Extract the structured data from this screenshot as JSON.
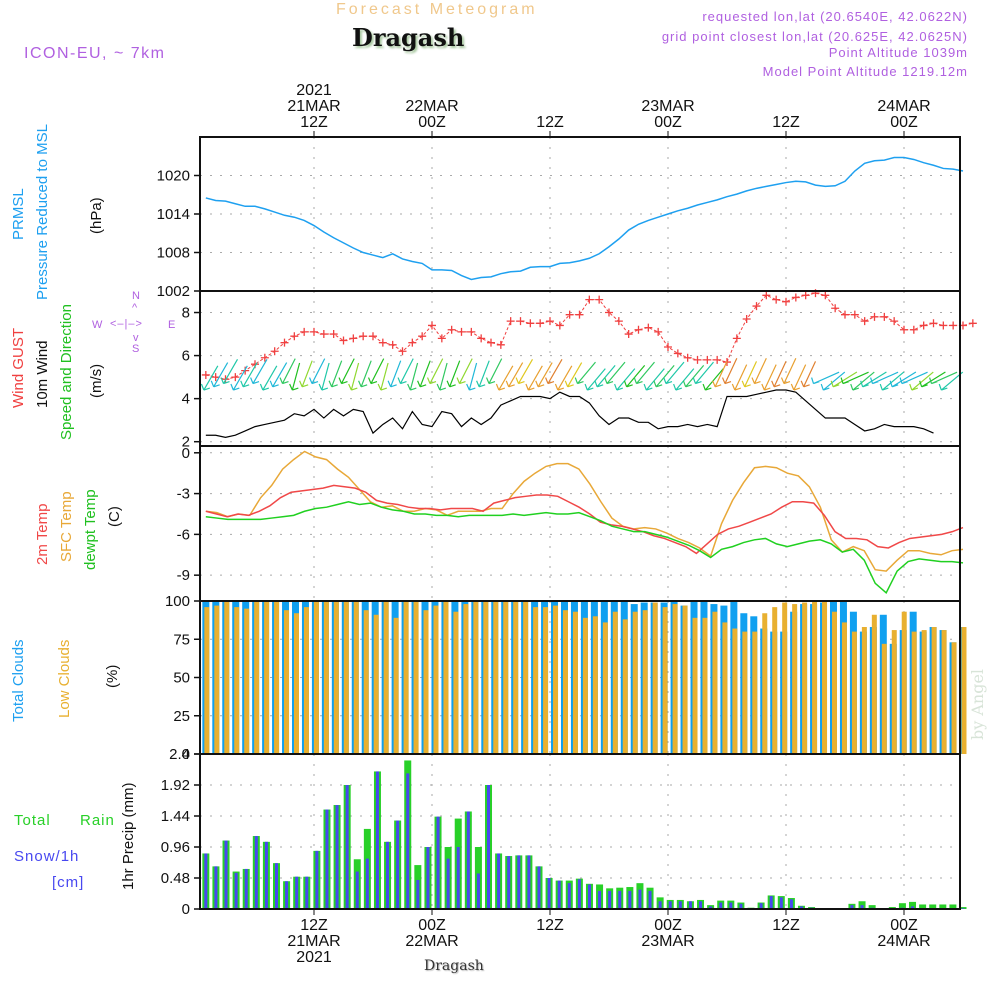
{
  "header": {
    "chart_type_title": "Forecast Meteogram",
    "location": "Dragash",
    "model": "ICON-EU, ~ 7km",
    "requested": "requested lon,lat (20.6540E, 42.0622N)",
    "grid_point": "grid point closest lon,lat (20.625E, 42.0625N)",
    "point_altitude": "Point Altitude 1039m",
    "model_altitude": "Model Point Altitude 1219.12m"
  },
  "footer": {
    "location": "Dragash",
    "watermark": "by Angel"
  },
  "time_axis": {
    "top_ticks": [
      {
        "hour": 12,
        "lines": [
          "2021",
          "21MAR",
          "12Z"
        ]
      },
      {
        "hour": 24,
        "lines": [
          "22MAR",
          "00Z"
        ]
      },
      {
        "hour": 36,
        "lines": [
          "12Z"
        ]
      },
      {
        "hour": 48,
        "lines": [
          "23MAR",
          "00Z"
        ]
      },
      {
        "hour": 60,
        "lines": [
          "12Z"
        ]
      },
      {
        "hour": 72,
        "lines": [
          "24MAR",
          "00Z"
        ]
      }
    ],
    "bottom_ticks": [
      {
        "hour": 12,
        "lines": [
          "12Z",
          "21MAR",
          "2021"
        ]
      },
      {
        "hour": 24,
        "lines": [
          "00Z",
          "22MAR"
        ]
      },
      {
        "hour": 36,
        "lines": [
          "12Z"
        ]
      },
      {
        "hour": 48,
        "lines": [
          "00Z",
          "23MAR"
        ]
      },
      {
        "hour": 60,
        "lines": [
          "12Z"
        ]
      },
      {
        "hour": 72,
        "lines": [
          "00Z",
          "24MAR"
        ]
      }
    ],
    "start": "21MAR2021 01Z",
    "end": "24MAR2021 06Z",
    "step_hours": 1
  },
  "panel_labels": {
    "pressure": [
      "PRMSL",
      "Pressure Reduced to MSL",
      "(hPa)"
    ],
    "wind": [
      "Wind GUST",
      "10m Wind",
      "Speed and Direction",
      "(m/s)"
    ],
    "compass": {
      "n": "N",
      "s": "S",
      "e": "E",
      "w": "W"
    },
    "temp": [
      "2m Temp",
      "SFC Temp",
      "dewpt Temp",
      "(C)"
    ],
    "clouds": [
      "Total Clouds",
      "Low Clouds",
      "(%)"
    ],
    "precip": [
      "Total",
      "Rain",
      "Snow/1h",
      "[cm]",
      "1hr Precip (mm)"
    ]
  },
  "colors": {
    "pressure": "#1ea0f0",
    "gust": "#f04040",
    "wind": "#000000",
    "t2m": "#f04848",
    "sfc": "#e8a838",
    "dew": "#20d020",
    "total_cloud": "#10a0f0",
    "low_cloud": "#e8b030",
    "rain": "#28d028",
    "snow": "#4848f0",
    "purple": "#b060e0"
  },
  "chart_data": [
    {
      "type": "line",
      "title": "PRMSL Pressure Reduced to MSL",
      "ylabel": "(hPa)",
      "ylim": [
        1002,
        1026
      ],
      "yticks": [
        1002,
        1008,
        1014,
        1020
      ],
      "grid": true,
      "series": [
        {
          "name": "PRMSL",
          "values": [
            1016.5,
            1016.1,
            1016.0,
            1015.6,
            1015.2,
            1015.2,
            1014.8,
            1014.3,
            1013.8,
            1013.5,
            1013.0,
            1012.2,
            1011.2,
            1010.3,
            1009.5,
            1008.7,
            1008.0,
            1007.6,
            1007.2,
            1007.8,
            1007.0,
            1006.6,
            1006.3,
            1005.3,
            1005.3,
            1005.2,
            1004.4,
            1003.8,
            1004.1,
            1004.2,
            1004.7,
            1005.0,
            1005.1,
            1005.7,
            1005.8,
            1005.8,
            1006.3,
            1006.4,
            1006.7,
            1007.1,
            1007.8,
            1008.9,
            1010.1,
            1011.5,
            1012.4,
            1013.0,
            1013.5,
            1014.0,
            1014.5,
            1014.9,
            1015.4,
            1015.8,
            1016.2,
            1016.7,
            1017.1,
            1017.6,
            1018.0,
            1018.3,
            1018.6,
            1018.9,
            1019.1,
            1019.0,
            1018.5,
            1018.3,
            1018.4,
            1019.1,
            1020.7,
            1021.9,
            1022.3,
            1022.4,
            1022.8,
            1022.8,
            1022.5,
            1022.0,
            1021.6,
            1021.1,
            1021.0,
            1020.7
          ]
        }
      ]
    },
    {
      "type": "line",
      "title": "Wind GUST / 10m Wind Speed and Direction",
      "ylabel": "(m/s)",
      "ylim": [
        1.8,
        9.0
      ],
      "yticks": [
        2,
        4,
        6,
        8
      ],
      "grid": true,
      "series": [
        {
          "name": "Wind GUST",
          "values": [
            5.1,
            5.0,
            4.9,
            5.0,
            5.3,
            5.6,
            5.9,
            6.2,
            6.6,
            6.9,
            7.1,
            7.1,
            7.0,
            7.0,
            6.7,
            6.8,
            6.9,
            6.9,
            6.6,
            6.5,
            6.2,
            6.6,
            6.9,
            7.4,
            6.8,
            7.2,
            7.1,
            7.1,
            6.8,
            6.6,
            6.5,
            7.6,
            7.6,
            7.5,
            7.5,
            7.6,
            7.4,
            7.9,
            7.9,
            8.6,
            8.6,
            8.0,
            7.6,
            7.0,
            7.2,
            7.3,
            7.1,
            6.4,
            6.1,
            5.9,
            5.8,
            5.8,
            5.8,
            5.7,
            6.8,
            7.7,
            8.3,
            8.8,
            8.6,
            8.5,
            8.7,
            8.8,
            8.9,
            8.8,
            8.2,
            7.9,
            7.9,
            7.6,
            7.8,
            7.8,
            7.6,
            7.2,
            7.2,
            7.4,
            7.5,
            7.4,
            7.4,
            7.4,
            7.5
          ]
        },
        {
          "name": "10m Wind",
          "values": [
            2.3,
            2.3,
            2.2,
            2.3,
            2.5,
            2.7,
            2.8,
            2.9,
            3.0,
            3.3,
            3.2,
            3.5,
            3.1,
            3.5,
            3.2,
            3.5,
            3.4,
            2.4,
            2.8,
            3.1,
            2.6,
            3.4,
            2.8,
            2.7,
            3.4,
            3.3,
            2.7,
            3.1,
            2.8,
            3.1,
            3.7,
            3.9,
            4.1,
            4.1,
            4.1,
            4.0,
            4.3,
            4.1,
            4.1,
            3.8,
            3.2,
            2.8,
            3.1,
            3.1,
            2.9,
            2.9,
            2.6,
            2.7,
            2.7,
            2.8,
            2.7,
            2.8,
            2.7,
            4.1,
            4.1,
            4.1,
            4.2,
            4.3,
            4.4,
            4.4,
            4.3,
            3.9,
            3.5,
            3.1,
            3.1,
            3.1,
            2.8,
            2.5,
            2.6,
            2.8,
            2.7,
            2.7,
            2.7,
            2.6,
            2.4
          ]
        }
      ]
    },
    {
      "type": "line",
      "title": "2m Temp / SFC Temp / dewpt Temp",
      "ylabel": "(C)",
      "ylim": [
        -10.9,
        0.5
      ],
      "yticks": [
        0,
        -3,
        -6,
        -9
      ],
      "grid": true,
      "series": [
        {
          "name": "2m Temp",
          "values": [
            -4.3,
            -4.5,
            -4.7,
            -4.5,
            -4.6,
            -4.3,
            -3.9,
            -3.3,
            -2.9,
            -2.8,
            -2.7,
            -2.6,
            -2.4,
            -2.5,
            -2.6,
            -2.9,
            -3.5,
            -3.7,
            -3.8,
            -4.0,
            -4.1,
            -4.1,
            -4.2,
            -4.1,
            -4.1,
            -4.1,
            -4.3,
            -3.7,
            -3.5,
            -3.3,
            -3.2,
            -3.1,
            -3.1,
            -3.2,
            -3.6,
            -4.0,
            -4.5,
            -5.1,
            -5.3,
            -5.4,
            -5.6,
            -5.8,
            -6.1,
            -6.3,
            -6.6,
            -6.9,
            -7.4,
            -6.7,
            -6.0,
            -5.6,
            -5.4,
            -5.1,
            -4.8,
            -4.5,
            -4.0,
            -3.6,
            -3.6,
            -3.7,
            -4.6,
            -5.8,
            -6.3,
            -6.3,
            -6.4,
            -6.9,
            -7.0,
            -6.6,
            -6.3,
            -6.2,
            -6.1,
            -6.0,
            -5.8,
            -5.5
          ]
        },
        {
          "name": "SFC Temp",
          "values": [
            -4.3,
            -4.4,
            -4.7,
            -4.5,
            -4.6,
            -3.3,
            -2.4,
            -1.2,
            -0.5,
            0.1,
            -0.3,
            -0.5,
            -1.2,
            -1.8,
            -2.7,
            -3.6,
            -4.0,
            -3.9,
            -4.3,
            -4.3,
            -4.1,
            -4.2,
            -4.6,
            -4.3,
            -4.3,
            -4.3,
            -4.1,
            -4.1,
            -3.0,
            -2.1,
            -1.5,
            -1.0,
            -0.8,
            -0.8,
            -1.2,
            -2.3,
            -3.6,
            -4.8,
            -5.4,
            -5.6,
            -5.5,
            -5.6,
            -5.9,
            -6.3,
            -6.6,
            -7.0,
            -7.6,
            -5.2,
            -3.5,
            -2.2,
            -1.1,
            -1.0,
            -1.1,
            -1.5,
            -1.7,
            -2.5,
            -4.0,
            -6.4,
            -7.3,
            -6.9,
            -7.2,
            -8.6,
            -8.7,
            -7.9,
            -7.2,
            -7.2,
            -7.4,
            -7.5,
            -7.2,
            -7.1
          ]
        },
        {
          "name": "dewpt Temp",
          "values": [
            -4.7,
            -4.8,
            -4.9,
            -4.9,
            -4.9,
            -4.9,
            -4.8,
            -4.7,
            -4.6,
            -4.3,
            -4.1,
            -4.0,
            -3.8,
            -3.6,
            -3.8,
            -3.7,
            -4.0,
            -4.2,
            -4.3,
            -4.5,
            -4.5,
            -4.6,
            -4.6,
            -4.7,
            -4.6,
            -4.6,
            -4.6,
            -4.6,
            -4.5,
            -4.6,
            -4.5,
            -4.4,
            -4.5,
            -4.5,
            -4.4,
            -4.7,
            -5.0,
            -5.4,
            -5.6,
            -5.8,
            -5.8,
            -6.0,
            -6.2,
            -6.5,
            -6.8,
            -7.2,
            -7.7,
            -7.1,
            -6.9,
            -6.6,
            -6.4,
            -6.3,
            -6.7,
            -6.9,
            -6.7,
            -6.5,
            -6.4,
            -6.7,
            -7.3,
            -7.1,
            -7.9,
            -9.6,
            -10.3,
            -8.7,
            -8.0,
            -7.8,
            -7.9,
            -8.0,
            -8.0,
            -8.1
          ]
        }
      ]
    },
    {
      "type": "bar",
      "title": "Total Clouds / Low Clouds",
      "ylabel": "(%)",
      "ylim": [
        0,
        100
      ],
      "yticks": [
        0,
        25,
        50,
        75,
        100
      ],
      "grid": true,
      "series": [
        {
          "name": "Total Clouds",
          "values": [
            100,
            100,
            100,
            100,
            100,
            100,
            100,
            100,
            100,
            100,
            100,
            100,
            100,
            100,
            100,
            100,
            100,
            100,
            100,
            100,
            100,
            100,
            100,
            100,
            100,
            100,
            100,
            100,
            100,
            100,
            100,
            100,
            100,
            100,
            100,
            100,
            100,
            100,
            100,
            100,
            100,
            100,
            100,
            100,
            100,
            100,
            100,
            100,
            100,
            98,
            99,
            99,
            99,
            99,
            100,
            97,
            100,
            100,
            98,
            100,
            97,
            100,
            92,
            90,
            82,
            80,
            80,
            90,
            93,
            98,
            98,
            99,
            100,
            100,
            93,
            86,
            80,
            83,
            91,
            72,
            81,
            93,
            80,
            81,
            83,
            81,
            73,
            83
          ]
        },
        {
          "name": "Low Clouds",
          "values": [
            96,
            97,
            100,
            96,
            95,
            100,
            100,
            100,
            94,
            92,
            96,
            100,
            100,
            100,
            100,
            100,
            94,
            91,
            100,
            89,
            100,
            100,
            94,
            97,
            100,
            93,
            98,
            100,
            100,
            100,
            100,
            100,
            100,
            96,
            96,
            97,
            94,
            93,
            89,
            90,
            86,
            93,
            88,
            93,
            94,
            99,
            96,
            98,
            97,
            89,
            89,
            93,
            86,
            82,
            80,
            80,
            92,
            96,
            99,
            98,
            99,
            100,
            100,
            93,
            86,
            80,
            83,
            91,
            72,
            81,
            93,
            80,
            81,
            83,
            81,
            73,
            83
          ]
        }
      ]
    },
    {
      "type": "bar",
      "title": "1hr Precip (mm) — Total Rain / Snow",
      "ylabel": "1hr Precip (mm)",
      "ylim": [
        0,
        2.4
      ],
      "yticks": [
        0,
        0.48,
        0.96,
        1.44,
        1.92,
        2.4
      ],
      "grid": true,
      "series": [
        {
          "name": "Total Rain",
          "values": [
            0.86,
            0.66,
            1.06,
            0.58,
            0.62,
            1.13,
            1.04,
            0.71,
            0.43,
            0.5,
            0.5,
            0.9,
            1.54,
            1.61,
            1.92,
            0.77,
            1.24,
            2.13,
            1.04,
            1.37,
            2.3,
            0.68,
            0.96,
            1.43,
            0.96,
            1.4,
            1.51,
            0.96,
            1.92,
            0.86,
            0.82,
            0.83,
            0.83,
            0.66,
            0.48,
            0.44,
            0.44,
            0.47,
            0.39,
            0.38,
            0.32,
            0.33,
            0.34,
            0.4,
            0.33,
            0.18,
            0.14,
            0.14,
            0.12,
            0.14,
            0.06,
            0.13,
            0.13,
            0.1,
            0.02,
            0.1,
            0.21,
            0.2,
            0.17,
            0.05,
            0.03,
            0.0,
            0.0,
            0.0,
            0.08,
            0.12,
            0.06,
            0.0,
            0.03,
            0.09,
            0.11,
            0.07,
            0.07,
            0.07,
            0.07,
            0.03
          ]
        },
        {
          "name": "Snow/1h",
          "values": [
            0.86,
            0.66,
            1.06,
            0.56,
            0.62,
            1.13,
            1.04,
            0.71,
            0.43,
            0.5,
            0.5,
            0.9,
            1.54,
            1.61,
            1.92,
            0.58,
            0.78,
            2.13,
            1.04,
            1.37,
            2.1,
            0.45,
            0.96,
            1.43,
            0.78,
            0.96,
            1.51,
            0.55,
            1.92,
            0.86,
            0.82,
            0.83,
            0.83,
            0.66,
            0.48,
            0.44,
            0.4,
            0.46,
            0.38,
            0.28,
            0.28,
            0.28,
            0.28,
            0.3,
            0.28,
            0.12,
            0.12,
            0.12,
            0.12,
            0.12,
            0.04,
            0.1,
            0.1,
            0.08,
            0.01,
            0.09,
            0.2,
            0.18,
            0.15,
            0.04,
            0.02,
            0.0,
            0.0,
            0.0,
            0.06,
            0.06,
            0.02,
            0.0,
            0.01,
            0.02,
            0.04,
            0.01,
            0.01,
            0.01,
            0.01,
            0.01
          ]
        }
      ]
    }
  ]
}
